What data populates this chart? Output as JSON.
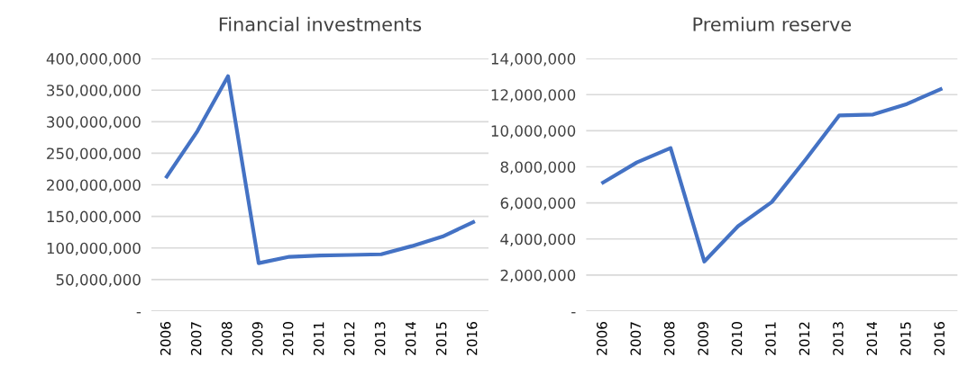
{
  "chart_data": [
    {
      "type": "line",
      "title": "Financial investments",
      "categories": [
        "2006",
        "2007",
        "2008",
        "2009",
        "2010",
        "2011",
        "2012",
        "2013",
        "2014",
        "2015",
        "2016"
      ],
      "series": [
        {
          "color": "#4472c4",
          "values": [
            213000000,
            285000000,
            372000000,
            76000000,
            86000000,
            88000000,
            89000000,
            90000000,
            103000000,
            118000000,
            141000000
          ]
        }
      ],
      "ylim": [
        0,
        400000000
      ],
      "yticks": [
        {
          "value": 0,
          "label": "-"
        },
        {
          "value": 50000000,
          "label": "50,000,000"
        },
        {
          "value": 100000000,
          "label": "100,000,000"
        },
        {
          "value": 150000000,
          "label": "150,000,000"
        },
        {
          "value": 200000000,
          "label": "200,000,000"
        },
        {
          "value": 250000000,
          "label": "250,000,000"
        },
        {
          "value": 300000000,
          "label": "300,000,000"
        },
        {
          "value": 350000000,
          "label": "350,000,000"
        },
        {
          "value": 400000000,
          "label": "400,000,000"
        }
      ],
      "grid": "y",
      "legend": false,
      "marker": "none"
    },
    {
      "type": "line",
      "title": "Premium reserve",
      "categories": [
        "2006",
        "2007",
        "2008",
        "2009",
        "2010",
        "2011",
        "2012",
        "2013",
        "2014",
        "2015",
        "2016"
      ],
      "series": [
        {
          "color": "#4472c4",
          "values": [
            7130000,
            8240000,
            9040000,
            2750000,
            4710000,
            6050000,
            8400000,
            10850000,
            10900000,
            11480000,
            12300000
          ]
        }
      ],
      "ylim": [
        0,
        14000000
      ],
      "yticks": [
        {
          "value": 0,
          "label": "-"
        },
        {
          "value": 2000000,
          "label": "2,000,000"
        },
        {
          "value": 4000000,
          "label": "4,000,000"
        },
        {
          "value": 6000000,
          "label": "6,000,000"
        },
        {
          "value": 8000000,
          "label": "8,000,000"
        },
        {
          "value": 10000000,
          "label": "10,000,000"
        },
        {
          "value": 12000000,
          "label": "12,000,000"
        },
        {
          "value": 14000000,
          "label": "14,000,000"
        }
      ],
      "grid": "y",
      "legend": false,
      "marker": "none"
    }
  ]
}
